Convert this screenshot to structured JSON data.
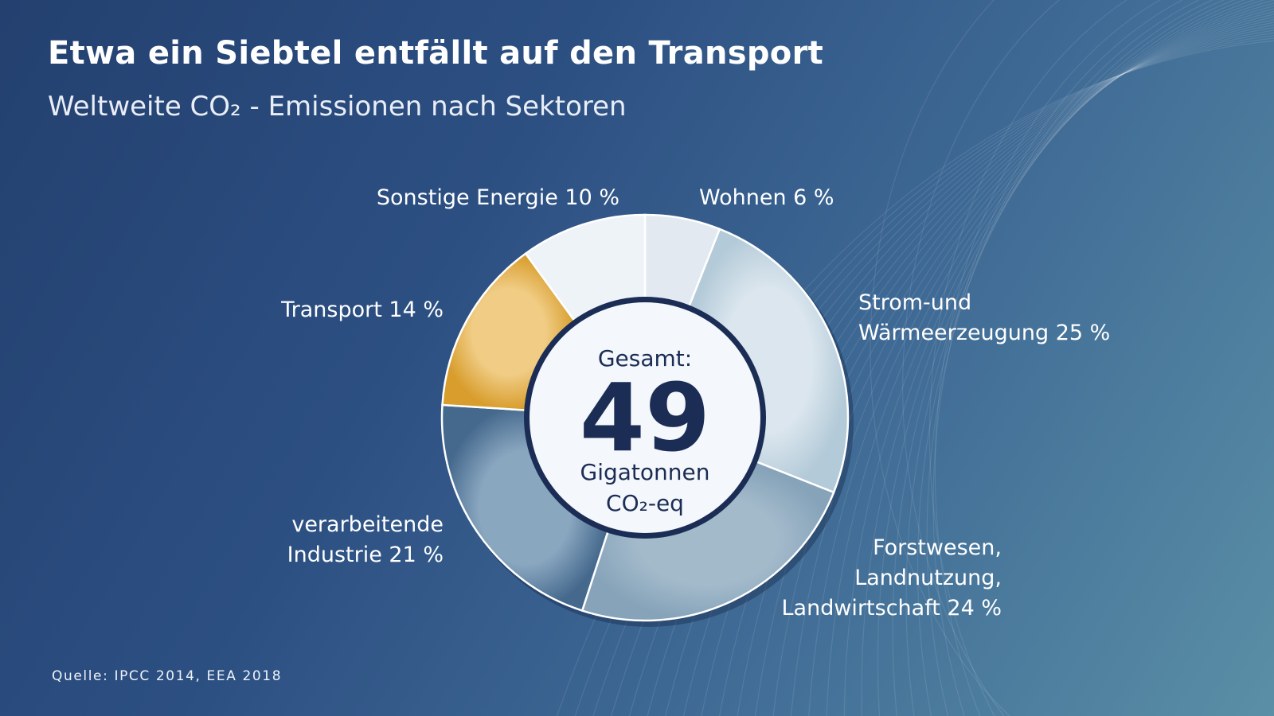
{
  "title": "Etwa ein Siebtel entfällt auf den Transport",
  "subtitle": "Weltweite  CO₂ - Emissionen nach Sektoren",
  "source": "Quelle: IPCC 2014, EEA 2018",
  "center": {
    "top": "Gesamt:",
    "value": "49",
    "unit_line1": "Gigatonnen",
    "unit_line2": "CO₂-eq"
  },
  "chart_data": {
    "type": "pie",
    "variant": "donut",
    "total": 49,
    "unit": "Gigatonnen CO₂-eq",
    "categories": [
      "Wohnen",
      "Strom-und Wärmeerzeugung",
      "Forstwesen, Landnutzung, Landwirtschaft",
      "verarbeitende Industrie",
      "Transport",
      "Sonstige Energie"
    ],
    "values": [
      6,
      25,
      24,
      21,
      14,
      10
    ],
    "colors": [
      "#e3e9f1",
      "#b9cfdc",
      "#8aa7bc",
      "#4b6f93",
      "#dba236",
      "#edf2f7"
    ],
    "labels": [
      {
        "lines": [
          "Wohnen 6 %"
        ]
      },
      {
        "lines": [
          "Strom-und",
          "Wärmeerzeugung 25 %"
        ]
      },
      {
        "lines": [
          "Forstwesen,",
          "Landnutzung,",
          "Landwirtschaft 24 %"
        ]
      },
      {
        "lines": [
          "verarbeitende",
          "Industrie 21 %"
        ]
      },
      {
        "lines": [
          "Transport  14 %"
        ]
      },
      {
        "lines": [
          "Sonstige Energie  10 %"
        ]
      }
    ]
  }
}
